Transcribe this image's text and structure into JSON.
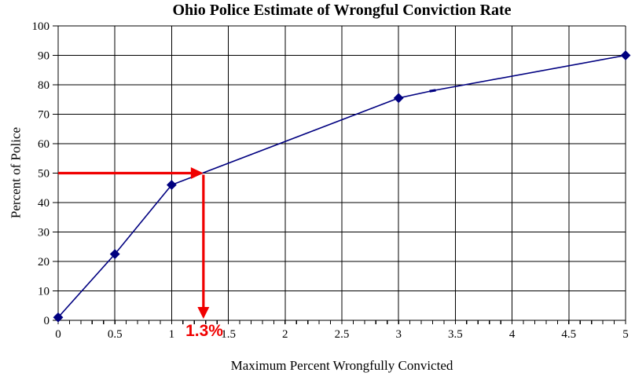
{
  "chart_data": {
    "type": "line",
    "title": "Ohio Police Estimate of Wrongful Conviction Rate",
    "xlabel": "Maximum Percent Wrongfully Convicted",
    "ylabel": "Percent of Police",
    "xlim": [
      0,
      5
    ],
    "ylim": [
      0,
      100
    ],
    "grid": true,
    "legend": "none",
    "x_minor_tick_step": 0.1,
    "xtick_values": [
      0,
      0.5,
      1,
      1.5,
      2,
      2.5,
      3,
      3.5,
      4,
      4.5,
      5
    ],
    "xtick_labels": [
      "0",
      "0.5",
      "1",
      "1.5",
      "2",
      "2.5",
      "3",
      "3.5",
      "4",
      "4.5",
      "5"
    ],
    "ytick_values": [
      0,
      10,
      20,
      30,
      40,
      50,
      60,
      70,
      80,
      90,
      100
    ],
    "ytick_labels": [
      "0",
      "10",
      "20",
      "30",
      "40",
      "50",
      "60",
      "70",
      "80",
      "90",
      "100"
    ],
    "series": [
      {
        "name": "cumulative-percent-of-police",
        "line_points": [
          [
            0,
            1
          ],
          [
            0.5,
            22.5
          ],
          [
            1,
            46
          ],
          [
            3,
            75.5
          ],
          [
            3.3,
            78
          ],
          [
            5,
            90
          ]
        ],
        "diamond_marker_points": [
          [
            0,
            1
          ],
          [
            0.5,
            22.5
          ],
          [
            1,
            46
          ],
          [
            3,
            75.5
          ],
          [
            5,
            90
          ]
        ],
        "dash_marker_points": [
          [
            3.3,
            78
          ]
        ]
      }
    ],
    "annotation": {
      "label": "1.3%",
      "crosshair_x": 1.28,
      "crosshair_y": 50
    },
    "colors": {
      "line": "#000080",
      "marker": "#000080",
      "grid": "#000000",
      "axis": "#000000",
      "annotation": "#f00000",
      "text": "#000000",
      "background": "#ffffff"
    }
  }
}
